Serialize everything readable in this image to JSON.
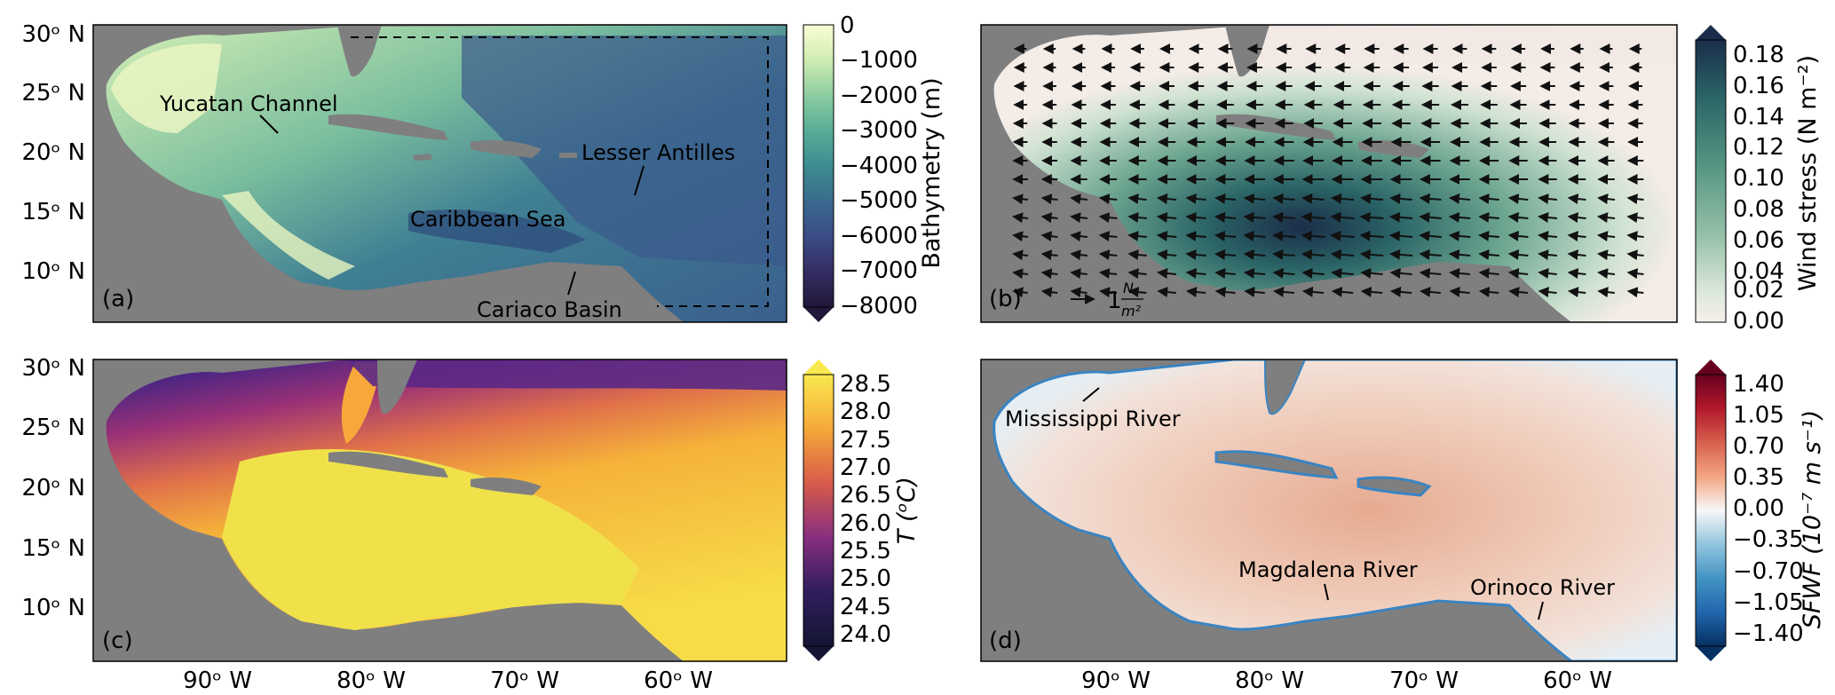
{
  "axes": {
    "lat_ticks": [
      "30ᵒ N",
      "25ᵒ N",
      "20ᵒ N",
      "15ᵒ N",
      "10ᵒ N"
    ],
    "lon_ticks": [
      "90ᵒ W",
      "80ᵒ W",
      "70ᵒ W",
      "60ᵒ W"
    ]
  },
  "panels": {
    "a": {
      "label": "(a)",
      "annotations": {
        "yucatan": "Yucatan Channel",
        "lesser_antilles": "Lesser Antilles",
        "caribbean_sea": "Caribbean Sea",
        "cariaco": "Cariaco Basin"
      },
      "colorbar": {
        "title": "Bathymetry (m)",
        "ticks": [
          "0",
          "−1000",
          "−2000",
          "−3000",
          "−4000",
          "−5000",
          "−6000",
          "−7000",
          "−8000"
        ],
        "colors": [
          "#fbfdd3",
          "#cfecb2",
          "#8ccca0",
          "#58ae97",
          "#3d8c91",
          "#3a6a8e",
          "#3b4c85",
          "#342d63",
          "#21173a"
        ]
      }
    },
    "b": {
      "label": "(b)",
      "scale_label": "1",
      "scale_unit_num": "N",
      "scale_unit_den": "m²",
      "colorbar": {
        "title": "Wind stress (N m⁻²)",
        "ticks": [
          "0.18",
          "0.16",
          "0.14",
          "0.12",
          "0.10",
          "0.08",
          "0.06",
          "0.04",
          "0.02",
          "0.00"
        ],
        "colors": [
          "#1a2d4a",
          "#1f4a5e",
          "#2a6466",
          "#3c7e74",
          "#569683",
          "#76ad96",
          "#98c2aa",
          "#bcd6c1",
          "#dde9dc",
          "#f6efea"
        ]
      }
    },
    "c": {
      "label": "(c)",
      "colorbar": {
        "title": "T (ᵒC)",
        "ticks": [
          "28.5",
          "28.0",
          "27.5",
          "27.0",
          "26.5",
          "26.0",
          "25.5",
          "25.0",
          "24.5",
          "24.0"
        ],
        "colors": [
          "#f9e94f",
          "#f7cf3d",
          "#f5a839",
          "#ec7f3c",
          "#d75b4b",
          "#b64068",
          "#872f7f",
          "#582584",
          "#301d5c",
          "#141433"
        ]
      }
    },
    "d": {
      "label": "(d)",
      "annotations": {
        "mississippi": "Mississippi River",
        "magdalena": "Magdalena River",
        "orinoco": "Orinoco River"
      },
      "colorbar": {
        "title": "SFWF (10⁻⁷ m s⁻¹)",
        "ticks": [
          "1.40",
          "1.05",
          "0.70",
          "0.35",
          "0.00",
          "−0.35",
          "−0.70",
          "−1.05",
          "−1.40"
        ],
        "colors": [
          "#67001f",
          "#b2182b",
          "#d6604d",
          "#f4a582",
          "#f7f7f7",
          "#92c5de",
          "#4393c3",
          "#2166ac",
          "#053061"
        ]
      }
    }
  }
}
